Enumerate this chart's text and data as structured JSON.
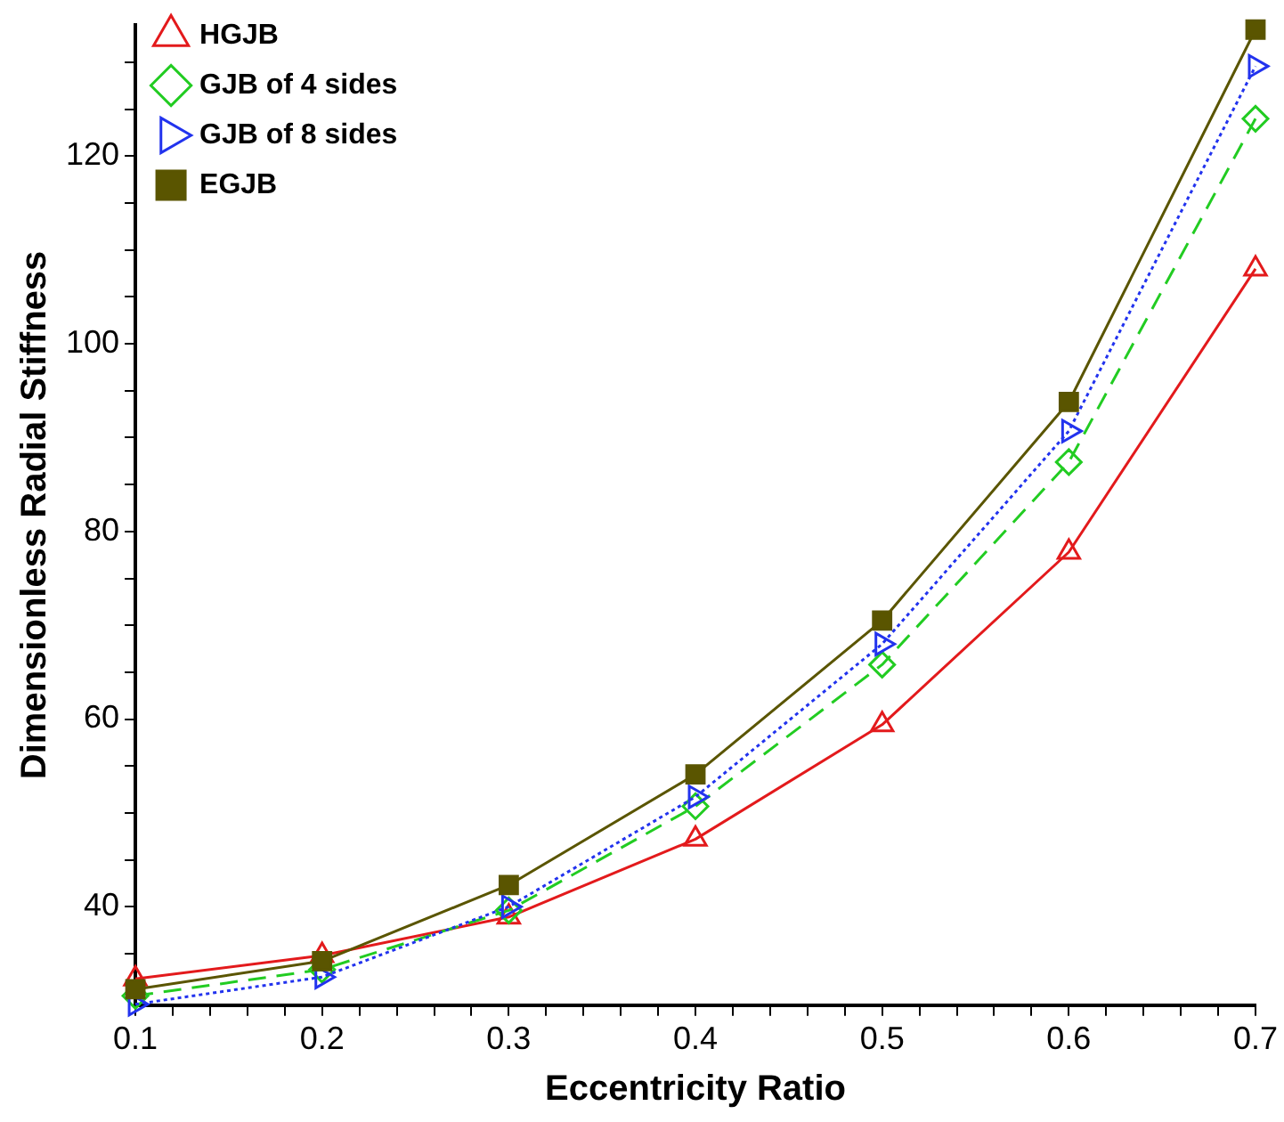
{
  "chart_data": {
    "type": "line",
    "xlabel": "Eccentricity Ratio",
    "ylabel": "Dimensionless Radial Stiffness",
    "x": [
      0.1,
      0.2,
      0.3,
      0.4,
      0.5,
      0.6,
      0.7
    ],
    "xlim": [
      0.1,
      0.7
    ],
    "xticks": [
      0.1,
      {
        "value": 0.12,
        "label": null
      },
      {
        "value": 0.14,
        "label": null
      },
      {
        "value": 0.16,
        "label": null
      },
      {
        "value": 0.18,
        "label": null
      },
      0.2,
      {
        "value": 0.22,
        "label": null
      },
      {
        "value": 0.24,
        "label": null
      },
      {
        "value": 0.26,
        "label": null
      },
      {
        "value": 0.28,
        "label": null
      },
      0.3,
      {
        "value": 0.32,
        "label": null
      },
      {
        "value": 0.34,
        "label": null
      },
      {
        "value": 0.36,
        "label": null
      },
      {
        "value": 0.38,
        "label": null
      },
      0.4,
      {
        "value": 0.42,
        "label": null
      },
      {
        "value": 0.44,
        "label": null
      },
      {
        "value": 0.46,
        "label": null
      },
      {
        "value": 0.48,
        "label": null
      },
      0.5,
      {
        "value": 0.52,
        "label": null
      },
      {
        "value": 0.54,
        "label": null
      },
      {
        "value": 0.56,
        "label": null
      },
      {
        "value": 0.58,
        "label": null
      },
      0.6,
      {
        "value": 0.62,
        "label": null
      },
      {
        "value": 0.64,
        "label": null
      },
      {
        "value": 0.66,
        "label": null
      },
      {
        "value": 0.68,
        "label": null
      },
      0.7
    ],
    "ylim": [
      29.5,
      134
    ],
    "yticks": [
      {
        "value": 35,
        "label": null
      },
      40,
      {
        "value": 45,
        "label": null
      },
      {
        "value": 50,
        "label": null
      },
      {
        "value": 55,
        "label": null
      },
      60,
      {
        "value": 65,
        "label": null
      },
      {
        "value": 70,
        "label": null
      },
      {
        "value": 75,
        "label": null
      },
      80,
      {
        "value": 85,
        "label": null
      },
      {
        "value": 90,
        "label": null
      },
      {
        "value": 95,
        "label": null
      },
      100,
      {
        "value": 105,
        "label": null
      },
      {
        "value": 110,
        "label": null
      },
      {
        "value": 115,
        "label": null
      },
      120,
      {
        "value": 125,
        "label": null
      },
      {
        "value": 130,
        "label": null
      }
    ],
    "grid": false,
    "legend": "top left",
    "series": [
      {
        "name": "HGJB",
        "color": "#e31a1c",
        "marker": "triangle",
        "line_style": "solid",
        "values": [
          32.3,
          34.8,
          38.9,
          47.2,
          59.4,
          77.8,
          108
        ]
      },
      {
        "name": "GJB of 4 sides",
        "color": "#22cc22",
        "marker": "diamond",
        "line_style": "dashed",
        "values": [
          30.5,
          33.3,
          39.6,
          50.7,
          65.8,
          87.4,
          124
        ]
      },
      {
        "name": "GJB of 8 sides",
        "color": "#2233ee",
        "marker": "triangle-right",
        "line_style": "dotted",
        "values": [
          29.6,
          32.5,
          40,
          51.7,
          68,
          90.7,
          129.6
        ]
      },
      {
        "name": "EGJB",
        "color": "#5a5500",
        "marker": "square",
        "line_style": "solid",
        "values": [
          31.2,
          34.2,
          42.3,
          54.1,
          70.5,
          93.8,
          133.5
        ]
      }
    ]
  }
}
